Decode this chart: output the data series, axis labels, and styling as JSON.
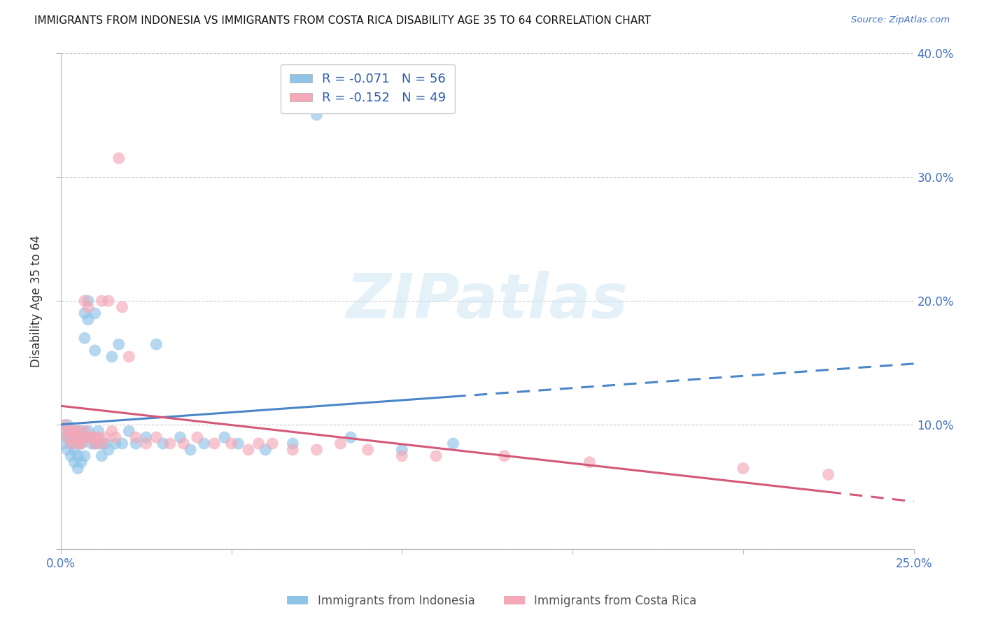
{
  "title": "IMMIGRANTS FROM INDONESIA VS IMMIGRANTS FROM COSTA RICA DISABILITY AGE 35 TO 64 CORRELATION CHART",
  "source": "Source: ZipAtlas.com",
  "ylabel": "Disability Age 35 to 64",
  "xlim": [
    0.0,
    0.25
  ],
  "ylim": [
    0.0,
    0.4
  ],
  "yticks": [
    0.0,
    0.1,
    0.2,
    0.3,
    0.4
  ],
  "ytick_labels_right": [
    "",
    "10.0%",
    "20.0%",
    "30.0%",
    "40.0%"
  ],
  "xtick_show": [
    0.0,
    0.25
  ],
  "xtick_labels_show": [
    "0.0%",
    "25.0%"
  ],
  "xtick_minor": [
    0.05,
    0.1,
    0.15,
    0.2
  ],
  "legend_label1": "Immigrants from Indonesia",
  "legend_label2": "Immigrants from Costa Rica",
  "R1": -0.071,
  "N1": 56,
  "R2": -0.152,
  "N2": 49,
  "color1": "#8ec4e8",
  "color2": "#f4a8b8",
  "line_color1": "#4a86c8",
  "line_color2": "#d45878",
  "watermark_text": "ZIPatlas",
  "indonesia_x": [
    0.001,
    0.001,
    0.002,
    0.002,
    0.002,
    0.003,
    0.003,
    0.003,
    0.004,
    0.004,
    0.004,
    0.005,
    0.005,
    0.005,
    0.005,
    0.006,
    0.006,
    0.006,
    0.007,
    0.007,
    0.007,
    0.007,
    0.008,
    0.008,
    0.008,
    0.009,
    0.009,
    0.01,
    0.01,
    0.01,
    0.011,
    0.011,
    0.012,
    0.012,
    0.013,
    0.014,
    0.015,
    0.016,
    0.017,
    0.018,
    0.02,
    0.022,
    0.025,
    0.028,
    0.03,
    0.035,
    0.038,
    0.042,
    0.048,
    0.052,
    0.06,
    0.068,
    0.075,
    0.085,
    0.1,
    0.115
  ],
  "indonesia_y": [
    0.095,
    0.085,
    0.09,
    0.1,
    0.08,
    0.085,
    0.075,
    0.09,
    0.08,
    0.095,
    0.07,
    0.095,
    0.085,
    0.075,
    0.065,
    0.095,
    0.085,
    0.07,
    0.19,
    0.17,
    0.09,
    0.075,
    0.2,
    0.185,
    0.095,
    0.09,
    0.085,
    0.19,
    0.16,
    0.085,
    0.095,
    0.085,
    0.085,
    0.075,
    0.085,
    0.08,
    0.155,
    0.085,
    0.165,
    0.085,
    0.095,
    0.085,
    0.09,
    0.165,
    0.085,
    0.09,
    0.08,
    0.085,
    0.09,
    0.085,
    0.08,
    0.085,
    0.35,
    0.09,
    0.08,
    0.085
  ],
  "costarica_x": [
    0.001,
    0.002,
    0.002,
    0.003,
    0.003,
    0.004,
    0.004,
    0.005,
    0.005,
    0.006,
    0.006,
    0.007,
    0.007,
    0.008,
    0.008,
    0.009,
    0.01,
    0.01,
    0.011,
    0.012,
    0.012,
    0.013,
    0.014,
    0.015,
    0.016,
    0.017,
    0.018,
    0.02,
    0.022,
    0.025,
    0.028,
    0.032,
    0.036,
    0.04,
    0.045,
    0.05,
    0.055,
    0.058,
    0.062,
    0.068,
    0.075,
    0.082,
    0.09,
    0.1,
    0.11,
    0.13,
    0.155,
    0.2,
    0.225
  ],
  "costarica_y": [
    0.1,
    0.095,
    0.09,
    0.095,
    0.085,
    0.095,
    0.09,
    0.095,
    0.085,
    0.09,
    0.085,
    0.095,
    0.2,
    0.09,
    0.195,
    0.09,
    0.09,
    0.085,
    0.09,
    0.2,
    0.085,
    0.09,
    0.2,
    0.095,
    0.09,
    0.315,
    0.195,
    0.155,
    0.09,
    0.085,
    0.09,
    0.085,
    0.085,
    0.09,
    0.085,
    0.085,
    0.08,
    0.085,
    0.085,
    0.08,
    0.08,
    0.085,
    0.08,
    0.075,
    0.075,
    0.075,
    0.07,
    0.065,
    0.06
  ]
}
